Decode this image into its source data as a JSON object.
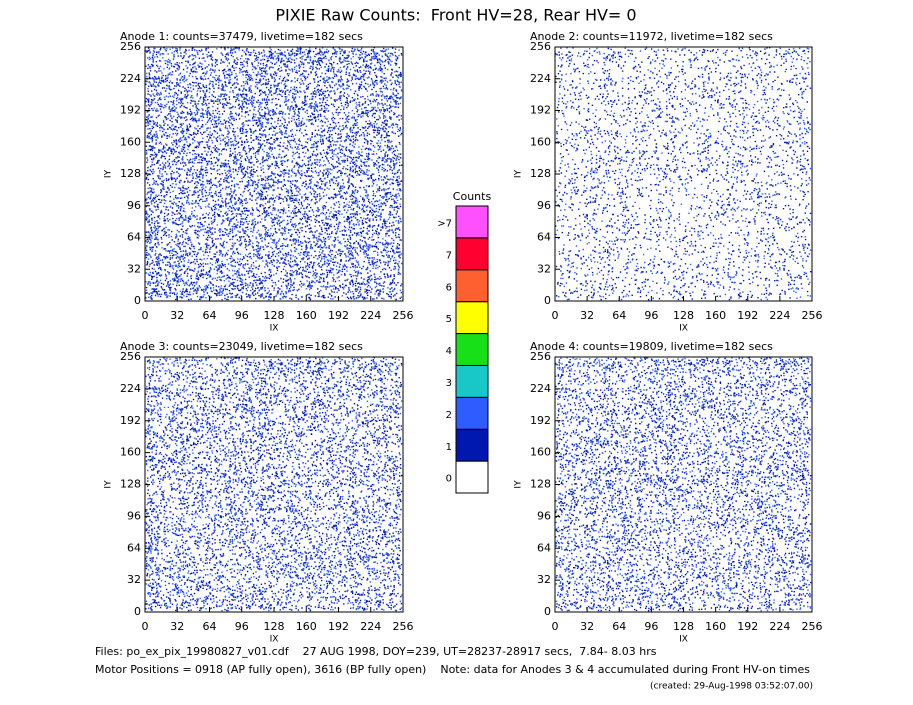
{
  "title": "PIXIE Raw Counts:  Front HV=28, Rear HV= 0",
  "chart_data": [
    {
      "type": "heatmap",
      "title": "Anode 1: counts=37479, livetime=182 secs",
      "xlabel": "IX",
      "ylabel": "IY",
      "xlim": [
        0,
        256
      ],
      "ylim": [
        0,
        256
      ],
      "xticks": [
        0,
        32,
        64,
        96,
        128,
        160,
        192,
        224,
        256
      ],
      "yticks": [
        0,
        32,
        64,
        96,
        128,
        160,
        192,
        224,
        256
      ]
    },
    {
      "type": "heatmap",
      "title": "Anode 2: counts=11972, livetime=182 secs",
      "xlabel": "IX",
      "ylabel": "IY",
      "xlim": [
        0,
        256
      ],
      "ylim": [
        0,
        256
      ],
      "xticks": [
        0,
        32,
        64,
        96,
        128,
        160,
        192,
        224,
        256
      ],
      "yticks": [
        0,
        32,
        64,
        96,
        128,
        160,
        192,
        224,
        256
      ]
    },
    {
      "type": "heatmap",
      "title": "Anode 3: counts=23049, livetime=182 secs",
      "xlabel": "IX",
      "ylabel": "IY",
      "xlim": [
        0,
        256
      ],
      "ylim": [
        0,
        256
      ],
      "xticks": [
        0,
        32,
        64,
        96,
        128,
        160,
        192,
        224,
        256
      ],
      "yticks": [
        0,
        32,
        64,
        96,
        128,
        160,
        192,
        224,
        256
      ]
    },
    {
      "type": "heatmap",
      "title": "Anode 4: counts=19809, livetime=182 secs",
      "xlabel": "IX",
      "ylabel": "IY",
      "xlim": [
        0,
        256
      ],
      "ylim": [
        0,
        256
      ],
      "xticks": [
        0,
        32,
        64,
        96,
        128,
        160,
        192,
        224,
        256
      ],
      "yticks": [
        0,
        32,
        64,
        96,
        128,
        160,
        192,
        224,
        256
      ]
    }
  ],
  "colorbar": {
    "title": "Counts",
    "labels": [
      0,
      1,
      2,
      3,
      4,
      5,
      6,
      7,
      ">7"
    ],
    "colors": [
      "#ffffff",
      "#0018b0",
      "#2e5cff",
      "#18c8c8",
      "#18e018",
      "#ffff00",
      "#ff6030",
      "#ff0030",
      "#ff50ff"
    ]
  },
  "footer": {
    "files": "Files: po_ex_pix_19980827_v01.cdf    27 AUG 1998, DOY=239, UT=28237-28917 secs,  7.84- 8.03 hrs",
    "motor": "Motor Positions = 0918 (AP fully open), 3616 (BP fully open)    Note: data for Anodes 3 & 4 accumulated during Front HV-on times",
    "created": "(created: 29-Aug-1998 03:52:07.00)"
  }
}
